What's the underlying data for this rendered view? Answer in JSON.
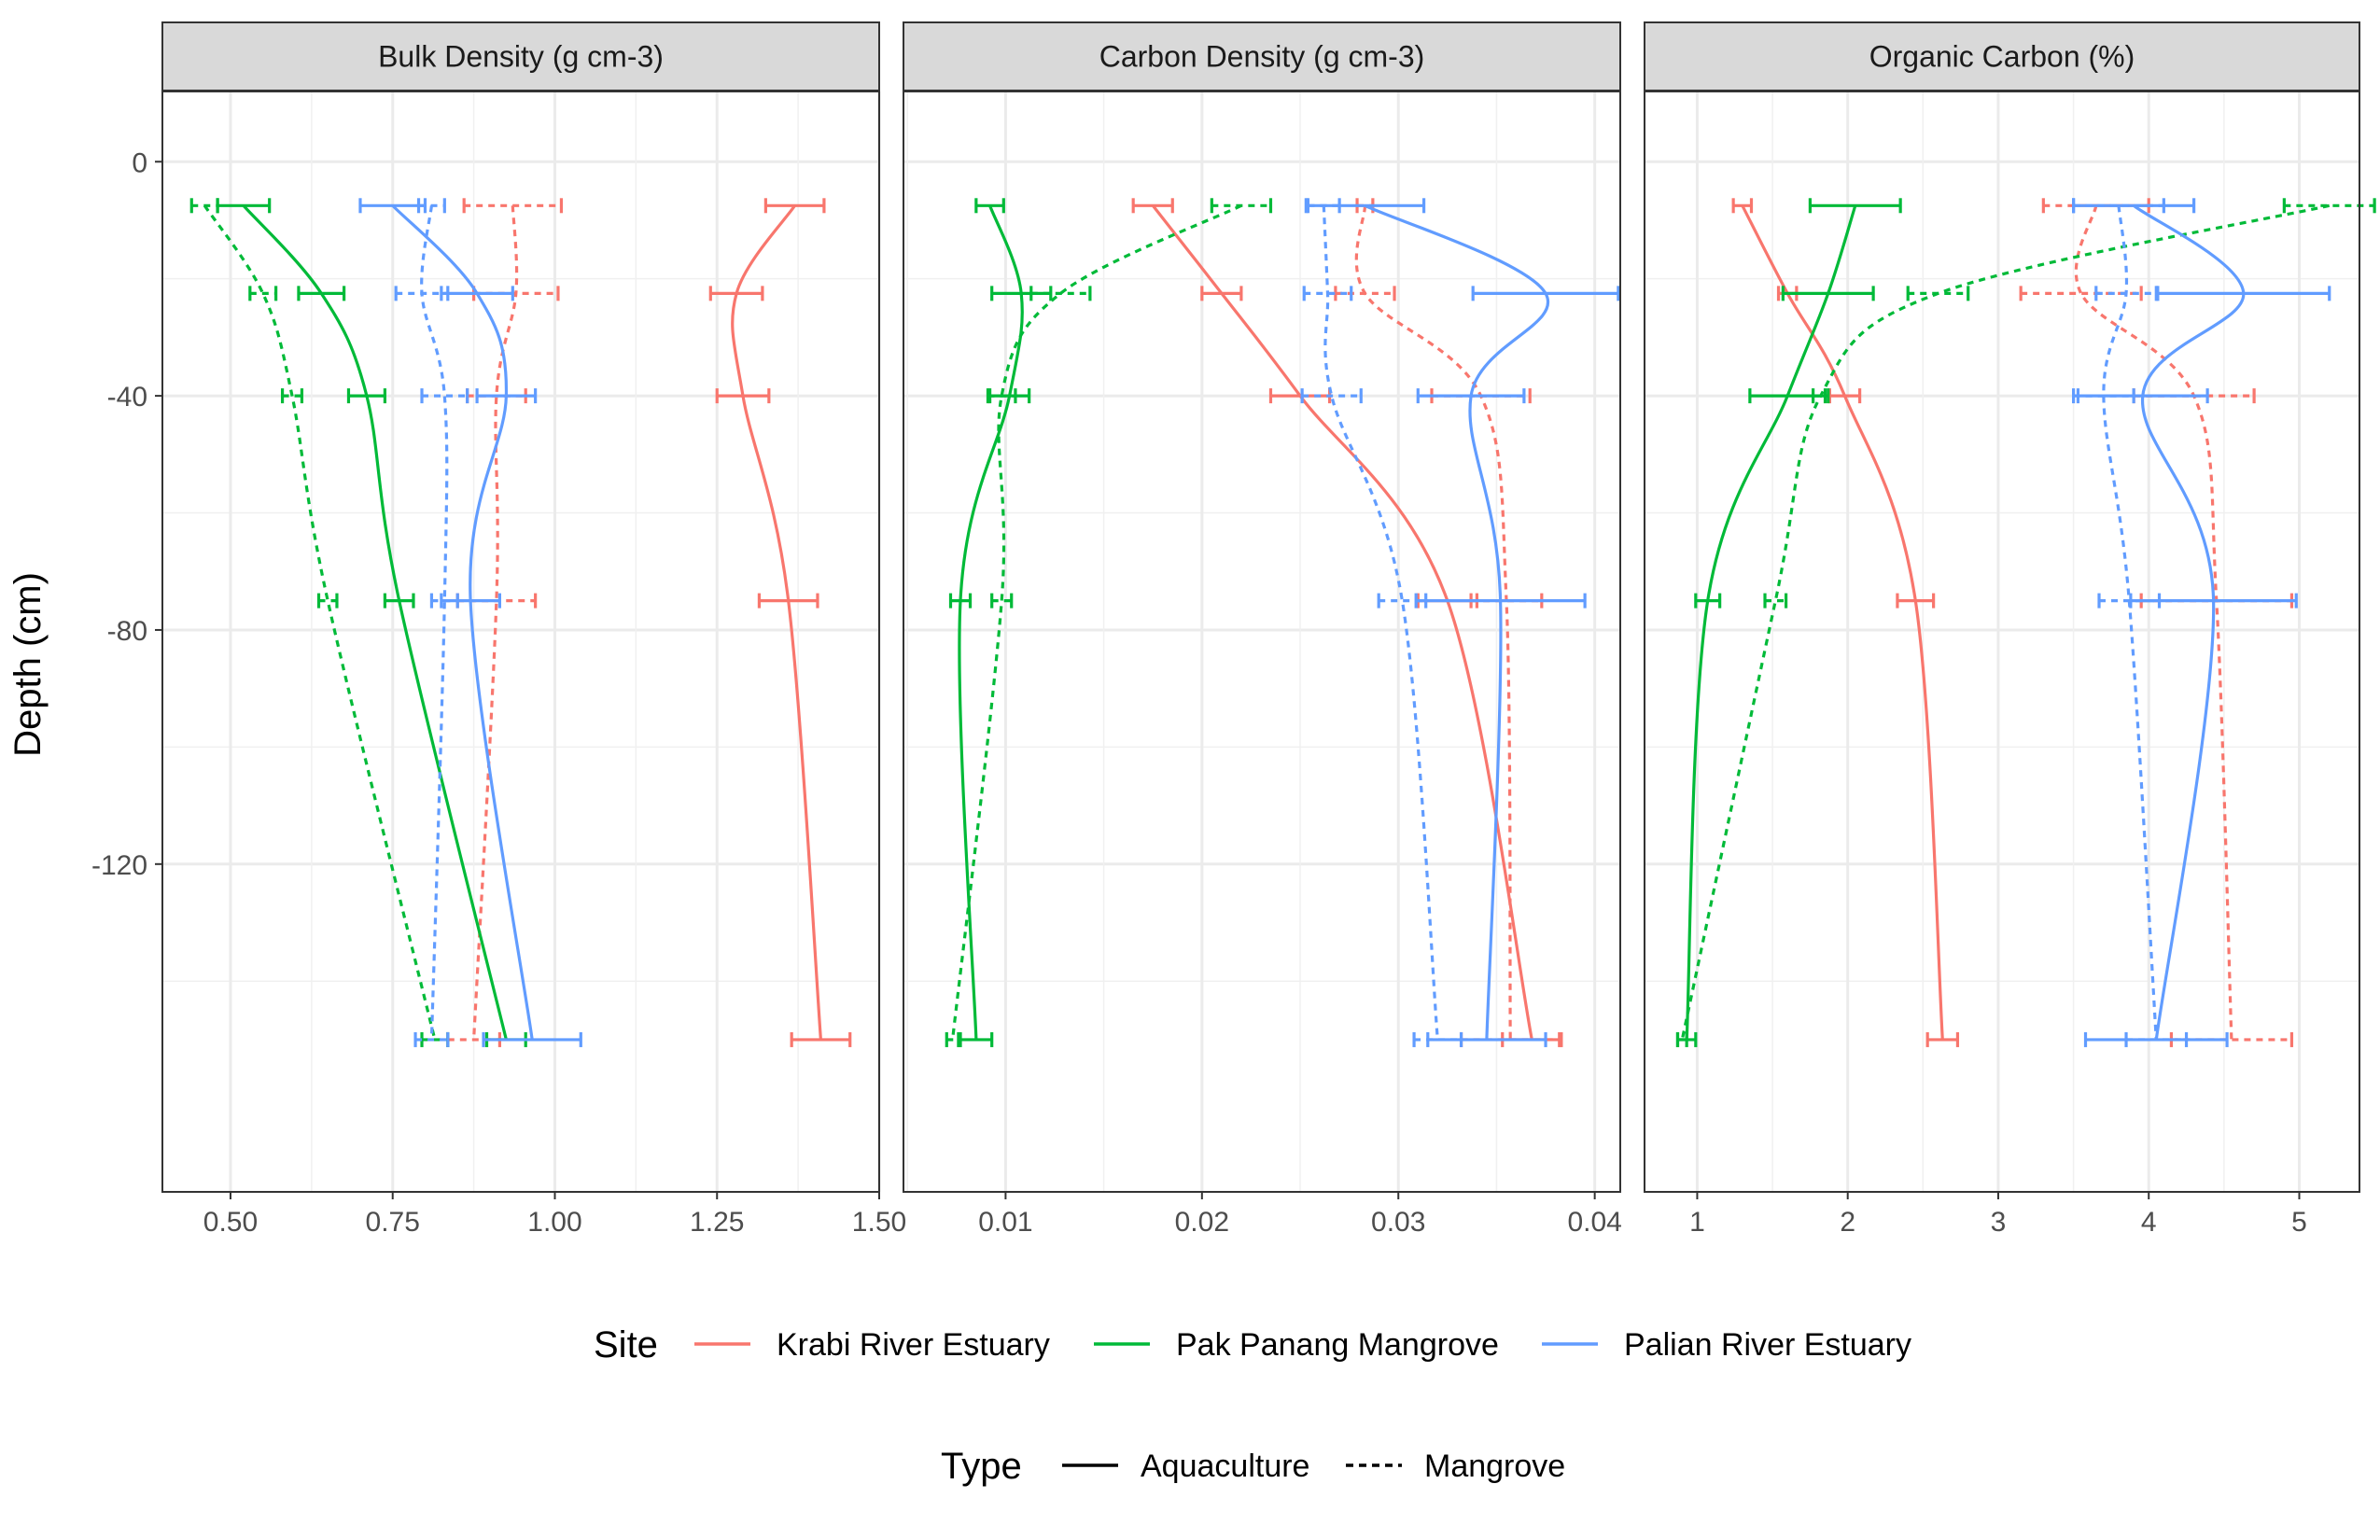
{
  "chart_data": {
    "type": "line",
    "ylabel": "Depth (cm)",
    "ylim": [
      -176,
      12
    ],
    "y_ticks": [
      0,
      -40,
      -80,
      -120
    ],
    "grid": true,
    "legend": {
      "placement": "bottom",
      "site_title": "Site",
      "type_title": "Type",
      "sites": [
        {
          "name": "Krabi River Estuary",
          "color": "#F8766D"
        },
        {
          "name": "Pak Panang Mangrove",
          "color": "#00BA38"
        },
        {
          "name": "Palian River Estuary",
          "color": "#619CFF"
        }
      ],
      "types": [
        {
          "name": "Aquaculture",
          "dash": "solid"
        },
        {
          "name": "Mangrove",
          "dash": "dashed"
        }
      ]
    },
    "depths": [
      -7.5,
      -22.5,
      -40,
      -75,
      -150
    ],
    "panels": [
      {
        "title": "Bulk Density (g cm-3)",
        "xlim": [
          0.395,
          1.5
        ],
        "x_ticks": [
          "0.50",
          "0.75",
          "1.00",
          "1.25",
          "1.50"
        ],
        "series": [
          {
            "site": "Krabi River Estuary",
            "type": "Aquaculture",
            "x": [
              1.37,
              1.28,
              1.29,
              1.36,
              1.41
            ],
            "err": [
              0.045,
              0.04,
              0.04,
              0.045,
              0.045
            ]
          },
          {
            "site": "Krabi River Estuary",
            "type": "Mangrove",
            "x": [
              0.935,
              0.94,
              0.91,
              0.91,
              0.875
            ],
            "err": [
              0.075,
              0.065,
              0.045,
              0.06,
              0.04
            ]
          },
          {
            "site": "Pak Panang Mangrove",
            "type": "Aquaculture",
            "x": [
              0.52,
              0.64,
              0.71,
              0.76,
              0.925
            ],
            "err": [
              0.04,
              0.035,
              0.028,
              0.022,
              0.03
            ]
          },
          {
            "site": "Pak Panang Mangrove",
            "type": "Mangrove",
            "x": [
              0.46,
              0.55,
              0.595,
              0.65,
              0.815
            ],
            "err": [
              0.02,
              0.02,
              0.015,
              0.014,
              0.02
            ]
          },
          {
            "site": "Palian River Estuary",
            "type": "Aquaculture",
            "x": [
              0.75,
              0.88,
              0.925,
              0.87,
              0.965
            ],
            "err": [
              0.05,
              0.055,
              0.045,
              0.045,
              0.075
            ]
          },
          {
            "site": "Palian River Estuary",
            "type": "Mangrove",
            "x": [
              0.81,
              0.795,
              0.83,
              0.83,
              0.81
            ],
            "err": [
              0.02,
              0.04,
              0.035,
              0.02,
              0.025
            ]
          }
        ]
      },
      {
        "title": "Carbon Density (g cm-3)",
        "xlim": [
          0.0048,
          0.0413
        ],
        "x_ticks": [
          "0.01",
          "0.02",
          "0.03",
          "0.04"
        ],
        "series": [
          {
            "site": "Krabi River Estuary",
            "type": "Aquaculture",
            "x": [
              0.0175,
              0.021,
              0.025,
              0.0325,
              0.0368
            ],
            "err": [
              0.001,
              0.001,
              0.0015,
              0.0015,
              0.0015
            ]
          },
          {
            "site": "Krabi River Estuary",
            "type": "Mangrove",
            "x": [
              0.0283,
              0.0283,
              0.0342,
              0.0355,
              0.0357
            ],
            "err": [
              0.0004,
              0.0015,
              0.0025,
              0.0018,
              0.0025
            ]
          },
          {
            "site": "Pak Panang Mangrove",
            "type": "Aquaculture",
            "x": [
              0.0092,
              0.0108,
              0.0102,
              0.0077,
              0.0085
            ],
            "err": [
              0.0007,
              0.0015,
              0.001,
              0.0005,
              0.0008
            ]
          },
          {
            "site": "Pak Panang Mangrove",
            "type": "Mangrove",
            "x": [
              0.022,
              0.0128,
              0.0098,
              0.0098,
              0.0073
            ],
            "err": [
              0.0015,
              0.0015,
              0.0007,
              0.0005,
              0.0003
            ]
          },
          {
            "site": "Palian River Estuary",
            "type": "Aquaculture",
            "x": [
              0.0283,
              0.0375,
              0.0337,
              0.0352,
              0.0345
            ],
            "err": [
              0.003,
              0.0037,
              0.0027,
              0.0043,
              0.003
            ]
          },
          {
            "site": "Palian River Estuary",
            "type": "Mangrove",
            "x": [
              0.0262,
              0.0264,
              0.0266,
              0.0302,
              0.032
            ],
            "err": [
              0.0008,
              0.0012,
              0.0015,
              0.0012,
              0.0012
            ]
          }
        ]
      },
      {
        "title": "Organic Carbon (%)",
        "xlim": [
          0.65,
          5.4
        ],
        "x_ticks": [
          "1",
          "2",
          "3",
          "4",
          "5"
        ],
        "series": [
          {
            "site": "Krabi River Estuary",
            "type": "Aquaculture",
            "x": [
              1.3,
              1.6,
              1.98,
              2.45,
              2.63
            ],
            "err": [
              0.06,
              0.06,
              0.1,
              0.12,
              0.1
            ]
          },
          {
            "site": "Krabi River Estuary",
            "type": "Mangrove",
            "x": [
              3.65,
              3.55,
              4.3,
              4.45,
              4.55
            ],
            "err": [
              0.35,
              0.4,
              0.4,
              0.5,
              0.4
            ]
          },
          {
            "site": "Pak Panang Mangrove",
            "type": "Aquaculture",
            "x": [
              2.05,
              1.87,
              1.6,
              1.07,
              0.93
            ],
            "err": [
              0.3,
              0.3,
              0.25,
              0.08,
              0.06
            ]
          },
          {
            "site": "Pak Panang Mangrove",
            "type": "Mangrove",
            "x": [
              5.2,
              2.6,
              1.82,
              1.52,
              0.9
            ],
            "err": [
              0.3,
              0.2,
              0.05,
              0.07,
              0.03
            ]
          },
          {
            "site": "Palian River Estuary",
            "type": "Aquaculture",
            "x": [
              3.9,
              4.63,
              3.96,
              4.43,
              4.05
            ],
            "err": [
              0.4,
              0.57,
              0.43,
              0.55,
              0.47
            ]
          },
          {
            "site": "Palian River Estuary",
            "type": "Mangrove",
            "x": [
              3.8,
              3.85,
              3.7,
              3.87,
              4.05
            ],
            "err": [
              0.3,
              0.2,
              0.2,
              0.2,
              0.2
            ]
          }
        ]
      }
    ]
  }
}
